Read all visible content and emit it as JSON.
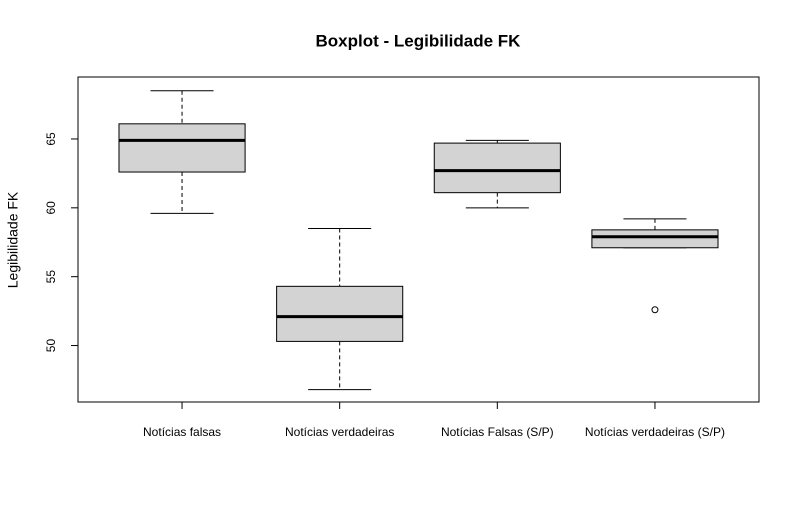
{
  "chart_data": {
    "type": "boxplot",
    "title": "Boxplot - Legibilidade FK",
    "y_label": "Legibilidade FK",
    "categories": [
      "Notícias falsas",
      "Notícias verdadeiras",
      "Notícias Falsas (S/P)",
      "Notícias verdadeiras (S/P)"
    ],
    "boxes": [
      {
        "min": 59.6,
        "q1": 62.6,
        "median": 64.9,
        "q3": 66.1,
        "max": 68.5
      },
      {
        "min": 46.8,
        "q1": 50.3,
        "median": 52.1,
        "q3": 54.3,
        "max": 58.5
      },
      {
        "min": 60.0,
        "q1": 61.1,
        "median": 62.7,
        "q3": 64.7,
        "max": 64.9
      },
      {
        "min": 57.1,
        "q1": 57.1,
        "median": 57.9,
        "q3": 58.4,
        "max": 59.2,
        "outliers": [
          52.6
        ]
      }
    ],
    "color": "#d3d3d3",
    "ylim": [
      45.9,
      69.5
    ],
    "yticks": [
      50,
      55,
      60,
      65
    ]
  }
}
